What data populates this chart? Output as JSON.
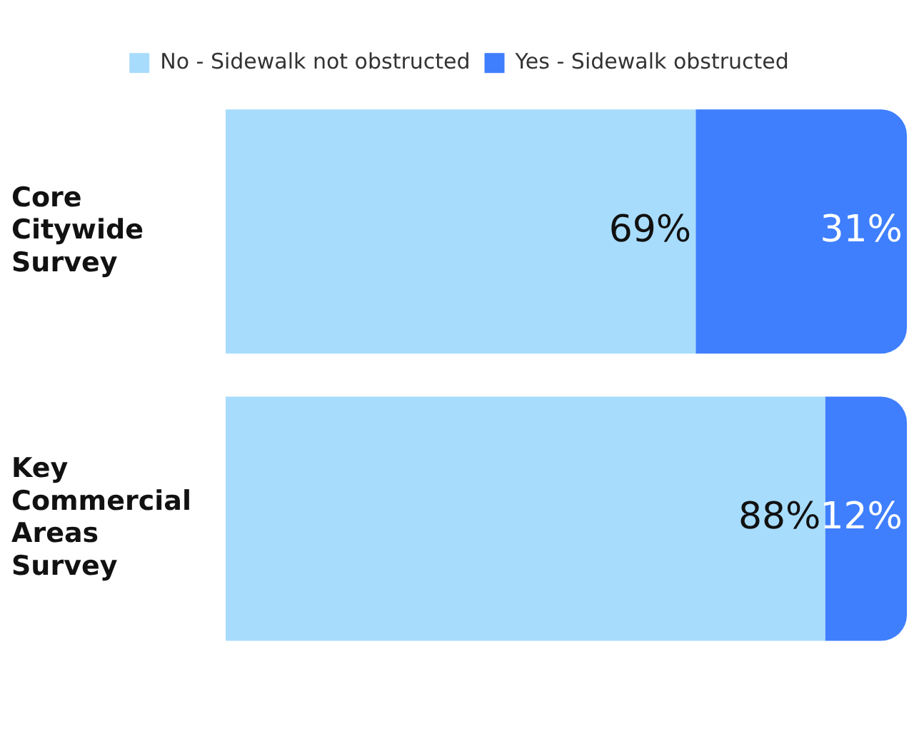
{
  "chart_data": {
    "type": "bar",
    "orientation": "horizontal",
    "stacked": true,
    "categories": [
      "Core Citywide Survey",
      "Key Commercial Areas Survey"
    ],
    "series": [
      {
        "name": "No - Sidewalk not obstructed",
        "color": "#a8dcfd",
        "values": [
          69,
          88
        ],
        "value_labels": [
          "69%",
          "88%"
        ]
      },
      {
        "name": "Yes - Sidewalk obstructed",
        "color": "#3f7ffe",
        "values": [
          31,
          12
        ],
        "value_labels": [
          "31%",
          "12%"
        ]
      }
    ],
    "xlim": [
      0,
      100
    ],
    "tick_labels": "y",
    "grid": false,
    "legend": "top"
  }
}
